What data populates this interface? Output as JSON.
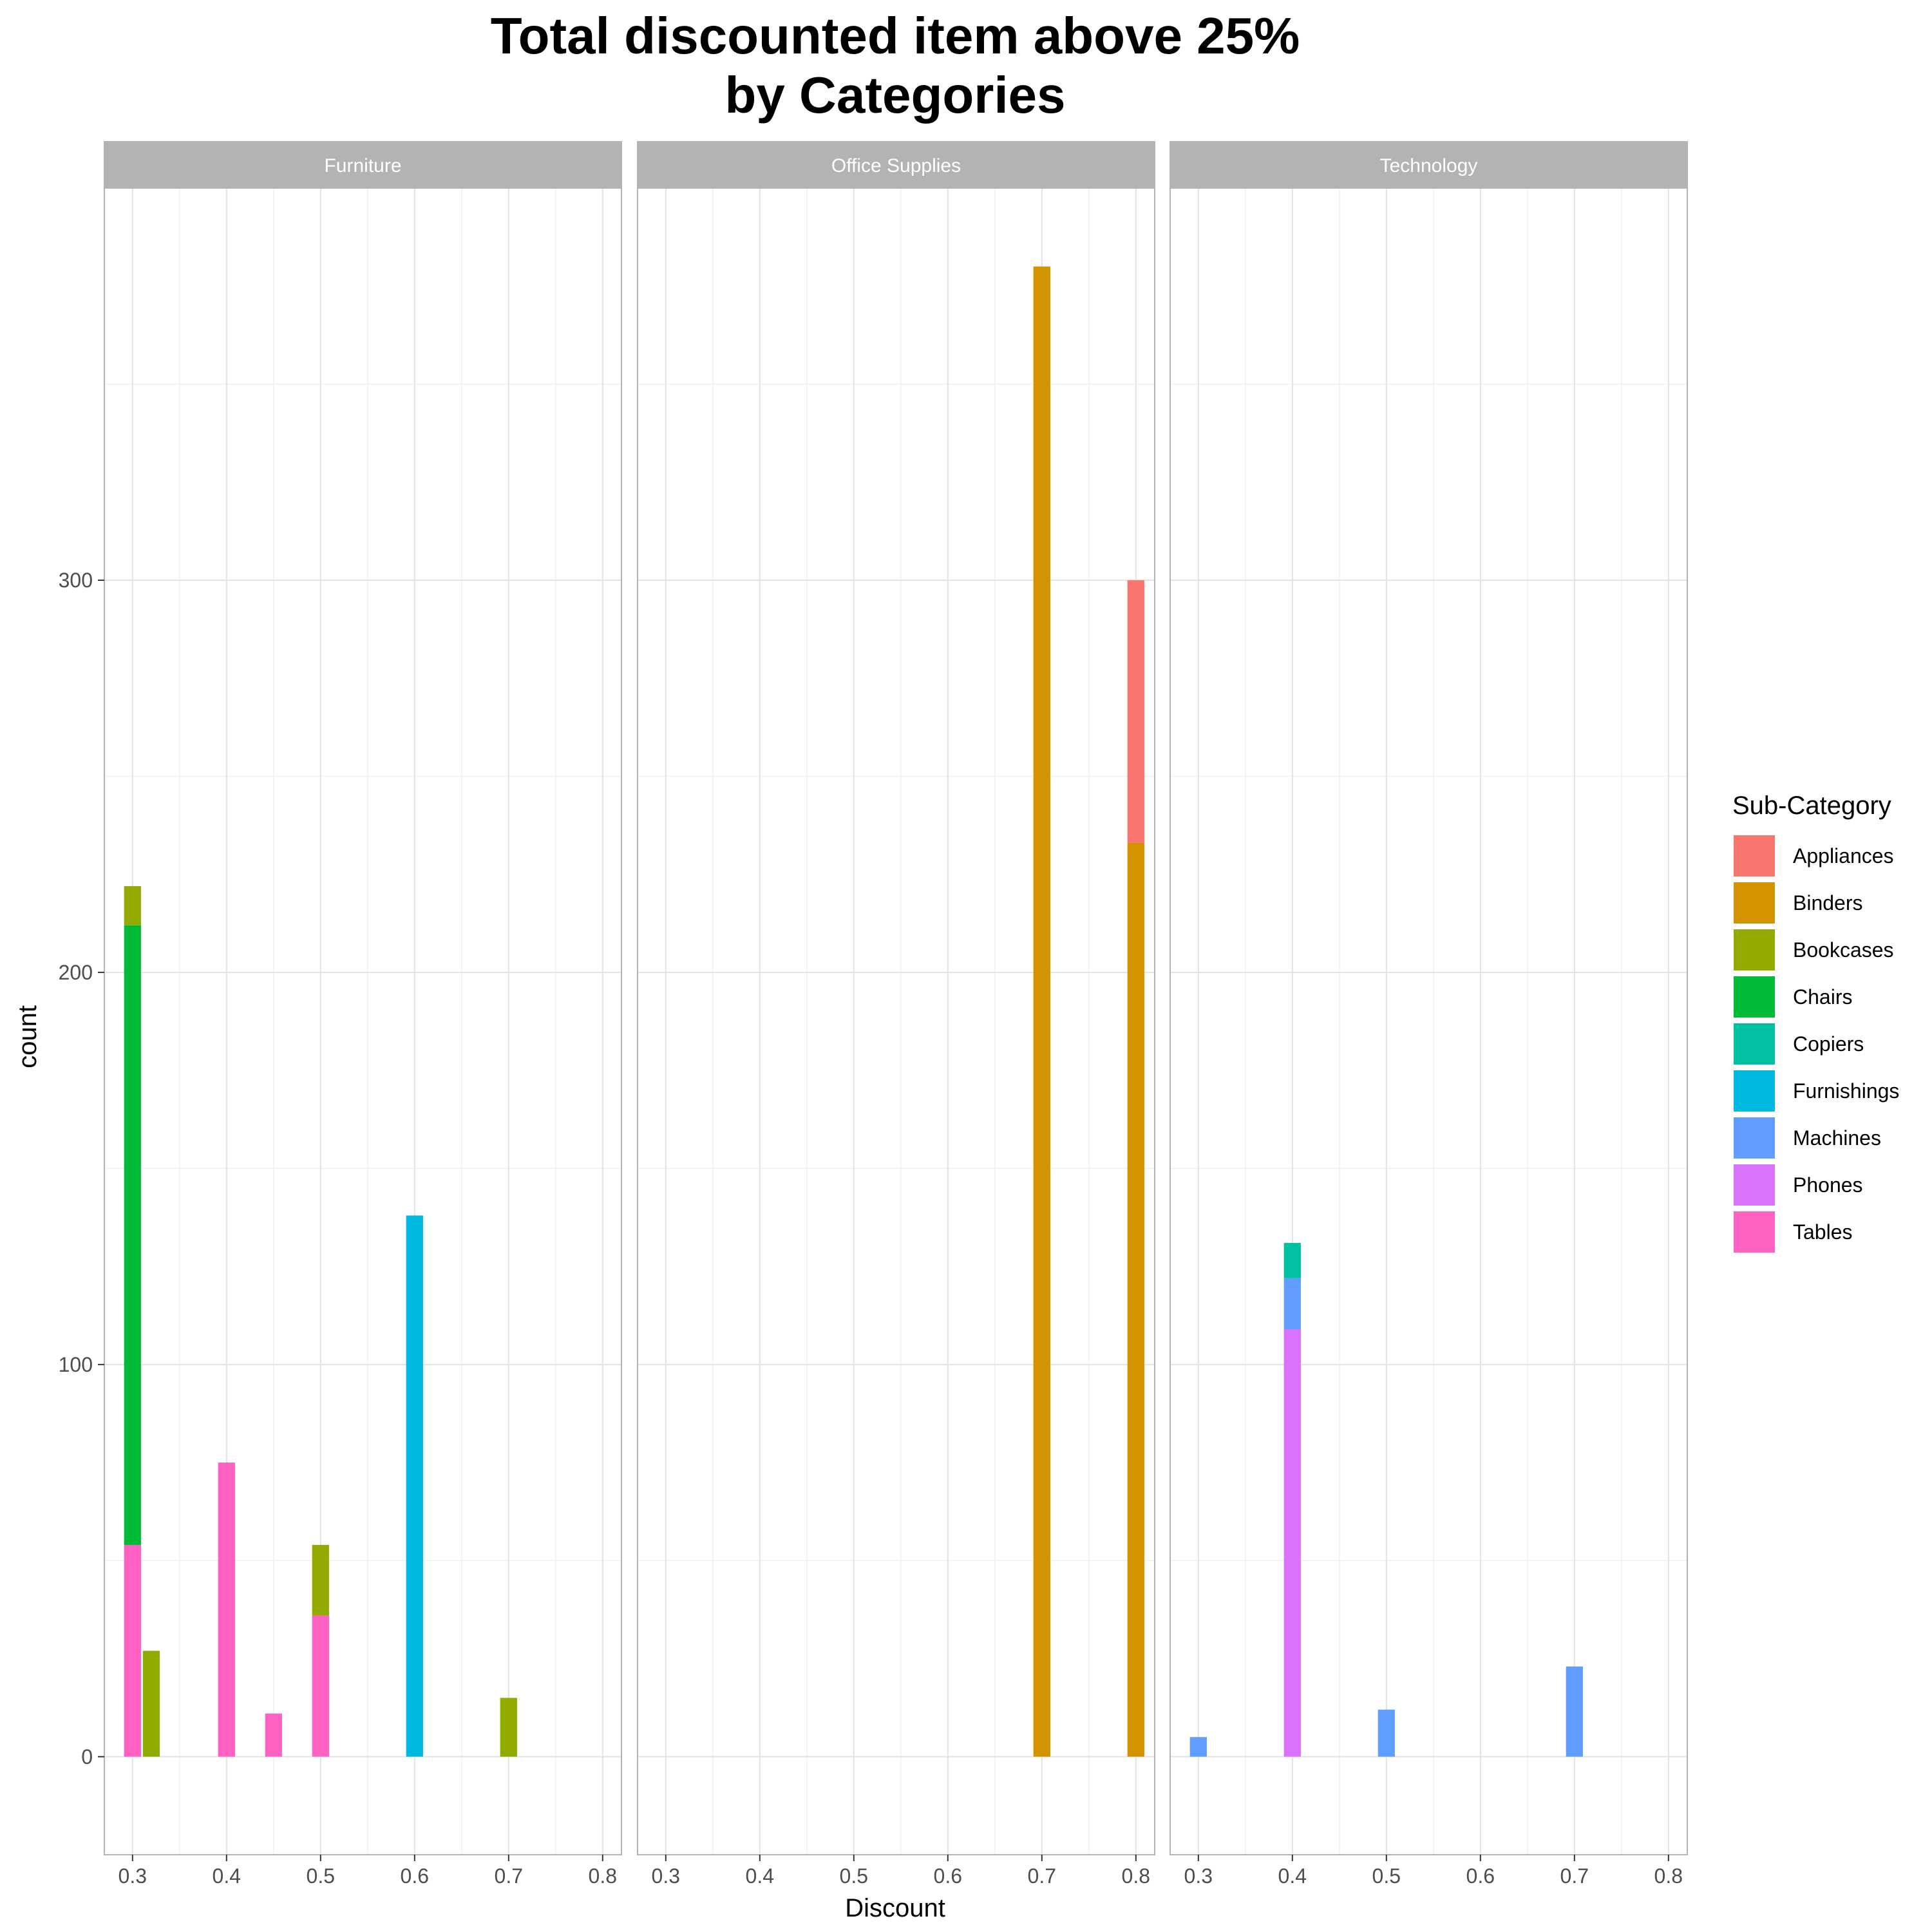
{
  "chart_data": {
    "type": "bar",
    "title": [
      "Total discounted item above 25%",
      "by Categories"
    ],
    "xlabel": "Discount",
    "ylabel": "count",
    "ylim": [
      -25,
      400
    ],
    "xlim": [
      0.27,
      0.82
    ],
    "x_ticks": [
      0.3,
      0.4,
      0.5,
      0.6,
      0.7,
      0.8
    ],
    "x_tick_labels": [
      "0.3",
      "0.4",
      "0.5",
      "0.6",
      "0.7",
      "0.8"
    ],
    "y_ticks": [
      0,
      100,
      200,
      300
    ],
    "y_tick_labels": [
      "0",
      "100",
      "200",
      "300"
    ],
    "grid": true,
    "bar_width": 0.018,
    "legend": {
      "title": "Sub-Category",
      "position": "right",
      "entries": [
        {
          "name": "Appliances",
          "color": "#F8766D"
        },
        {
          "name": "Binders",
          "color": "#D39200"
        },
        {
          "name": "Bookcases",
          "color": "#93AA00"
        },
        {
          "name": "Chairs",
          "color": "#00BA38"
        },
        {
          "name": "Copiers",
          "color": "#00C19F"
        },
        {
          "name": "Furnishings",
          "color": "#00B9E3"
        },
        {
          "name": "Machines",
          "color": "#619CFF"
        },
        {
          "name": "Phones",
          "color": "#DB72FB"
        },
        {
          "name": "Tables",
          "color": "#FF61C3"
        }
      ]
    },
    "facets": [
      {
        "name": "Furniture",
        "bars": [
          {
            "x": 0.3,
            "stack": [
              {
                "sub": "Tables",
                "value": 54
              },
              {
                "sub": "Chairs",
                "value": 158
              },
              {
                "sub": "Bookcases",
                "value": 10
              }
            ]
          },
          {
            "x": 0.32,
            "stack": [
              {
                "sub": "Bookcases",
                "value": 27
              }
            ]
          },
          {
            "x": 0.4,
            "stack": [
              {
                "sub": "Tables",
                "value": 75
              }
            ]
          },
          {
            "x": 0.45,
            "stack": [
              {
                "sub": "Tables",
                "value": 11
              }
            ]
          },
          {
            "x": 0.5,
            "stack": [
              {
                "sub": "Tables",
                "value": 36
              },
              {
                "sub": "Bookcases",
                "value": 18
              }
            ]
          },
          {
            "x": 0.6,
            "stack": [
              {
                "sub": "Furnishings",
                "value": 138
              }
            ]
          },
          {
            "x": 0.7,
            "stack": [
              {
                "sub": "Bookcases",
                "value": 15
              }
            ]
          }
        ]
      },
      {
        "name": "Office Supplies",
        "bars": [
          {
            "x": 0.7,
            "stack": [
              {
                "sub": "Binders",
                "value": 380
              }
            ]
          },
          {
            "x": 0.8,
            "stack": [
              {
                "sub": "Binders",
                "value": 233
              },
              {
                "sub": "Appliances",
                "value": 67
              }
            ]
          }
        ]
      },
      {
        "name": "Technology",
        "bars": [
          {
            "x": 0.3,
            "stack": [
              {
                "sub": "Machines",
                "value": 5
              }
            ]
          },
          {
            "x": 0.4,
            "stack": [
              {
                "sub": "Phones",
                "value": 109
              },
              {
                "sub": "Machines",
                "value": 13
              },
              {
                "sub": "Copiers",
                "value": 9
              }
            ]
          },
          {
            "x": 0.5,
            "stack": [
              {
                "sub": "Machines",
                "value": 12
              }
            ]
          },
          {
            "x": 0.7,
            "stack": [
              {
                "sub": "Machines",
                "value": 23
              }
            ]
          }
        ]
      }
    ]
  }
}
